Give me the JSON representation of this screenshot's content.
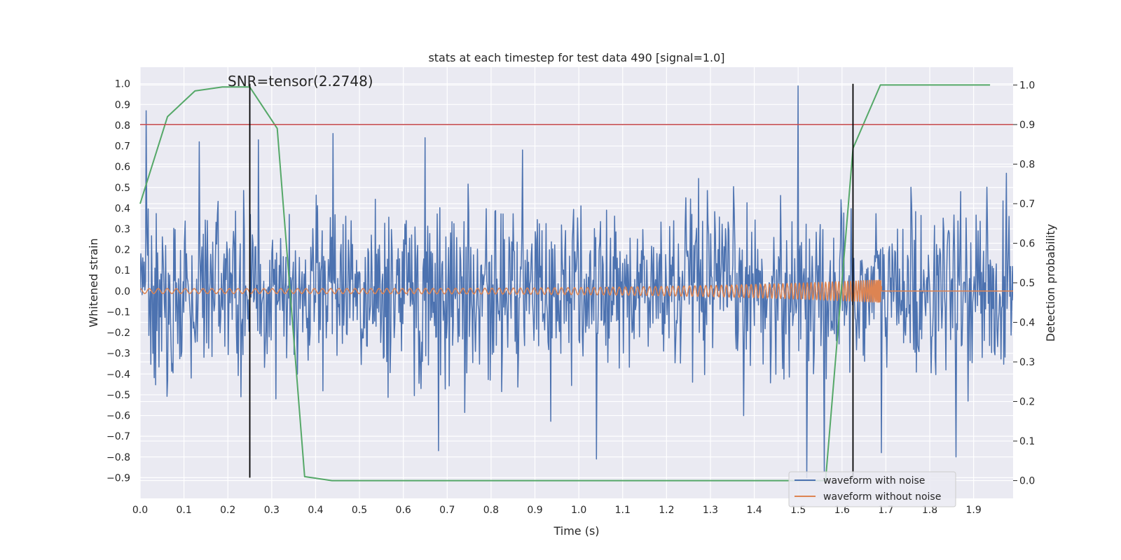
{
  "chart_data": {
    "type": "line",
    "title": "stats at each timestep for test data 490 [signal=1.0]",
    "xlabel": "Time (s)",
    "ylabel_left": "Whitened strain",
    "ylabel_right": "Detection probability",
    "xlim": [
      0.0,
      1.99
    ],
    "ylim_left": [
      -1.0,
      1.08
    ],
    "ylim_right": [
      -0.045,
      1.045
    ],
    "x_ticks": [
      "0.0",
      "0.1",
      "0.2",
      "0.3",
      "0.4",
      "0.5",
      "0.6",
      "0.7",
      "0.8",
      "0.9",
      "1.0",
      "1.1",
      "1.2",
      "1.3",
      "1.4",
      "1.5",
      "1.6",
      "1.7",
      "1.8",
      "1.9"
    ],
    "y_left_ticks": [
      "1.0",
      "0.9",
      "0.8",
      "0.7",
      "0.6",
      "0.5",
      "0.4",
      "0.3",
      "0.2",
      "0.1",
      "0.0",
      "−0.1",
      "−0.2",
      "−0.3",
      "−0.4",
      "−0.5",
      "−0.6",
      "−0.7",
      "−0.8",
      "−0.9"
    ],
    "y_right_ticks": [
      "0.0",
      "0.1",
      "0.2",
      "0.3",
      "0.4",
      "0.5",
      "0.6",
      "0.7",
      "0.8",
      "0.9",
      "1.0"
    ],
    "grid": true,
    "legend_position": "lower-right",
    "annotation": "SNR=tensor(2.2748)",
    "threshold_line": {
      "axis": "right",
      "value": 0.9,
      "color": "#c44e52"
    },
    "vertical_lines": [
      {
        "x": 0.25,
        "y_range": [
          -0.9,
          1.0
        ],
        "color": "#000000"
      },
      {
        "x": 1.625,
        "y_range": [
          -0.9,
          1.0
        ],
        "color": "#000000"
      }
    ],
    "series": [
      {
        "name": "waveform with noise",
        "axis": "left",
        "color": "#4c72b0",
        "kind": "noise",
        "amplitude_std": 0.2,
        "x_range": [
          0.0,
          1.99
        ],
        "samples": 1300,
        "notable_peaks": [
          {
            "x": 0.014,
            "y": 0.87
          },
          {
            "x": 0.135,
            "y": 0.72
          },
          {
            "x": 0.27,
            "y": 0.73
          },
          {
            "x": 0.44,
            "y": 0.76
          },
          {
            "x": 0.65,
            "y": 0.74
          },
          {
            "x": 1.5,
            "y": 0.99
          },
          {
            "x": 1.52,
            "y": -0.9
          },
          {
            "x": 1.56,
            "y": -0.87
          },
          {
            "x": 1.04,
            "y": -0.81
          },
          {
            "x": 0.68,
            "y": -0.77
          },
          {
            "x": 1.69,
            "y": -0.78
          },
          {
            "x": 1.86,
            "y": -0.8
          }
        ]
      },
      {
        "name": "waveform without noise",
        "axis": "left",
        "color": "#dd8452",
        "kind": "chirp",
        "x_range": [
          0.0,
          1.69
        ],
        "merger_x": 1.69,
        "start_amplitude": 0.012,
        "end_amplitude": 0.055,
        "post_merger_y": 0.0
      },
      {
        "name": "",
        "axis": "right",
        "color": "#55a868",
        "kind": "probability",
        "x": [
          0.0,
          0.0625,
          0.125,
          0.1875,
          0.25,
          0.3125,
          0.375,
          0.4375,
          0.5,
          0.5625,
          0.625,
          0.6875,
          0.75,
          0.8125,
          0.875,
          0.9375,
          1.0,
          1.0625,
          1.125,
          1.1875,
          1.25,
          1.3125,
          1.375,
          1.4375,
          1.5,
          1.5625,
          1.625,
          1.6875,
          1.75,
          1.8125,
          1.875,
          1.9375
        ],
        "y": [
          0.7,
          0.92,
          0.985,
          0.995,
          0.995,
          0.89,
          0.01,
          0.0,
          0.0,
          0.0,
          0.0,
          0.0,
          0.0,
          0.0,
          0.0,
          0.0,
          0.0,
          0.0,
          0.0,
          0.0,
          0.0,
          0.0,
          0.0,
          0.0,
          0.0,
          0.0,
          0.84,
          1.0,
          1.0,
          1.0,
          1.0,
          1.0
        ]
      }
    ]
  }
}
